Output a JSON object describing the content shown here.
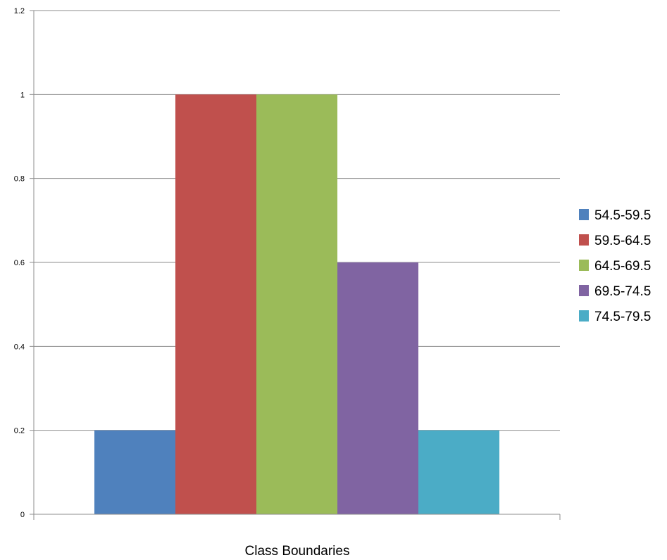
{
  "chart_data": {
    "type": "bar",
    "xlabel": "Class Boundaries",
    "ylabel": "",
    "ylim": [
      0,
      1.2
    ],
    "yticks": [
      "0",
      "0.2",
      "0.4",
      "0.6",
      "0.8",
      "1",
      "1.2"
    ],
    "grid": true,
    "legend_position": "right",
    "series": [
      {
        "name": "54.5-59.5",
        "value": 0.2,
        "color": "#4F81BD"
      },
      {
        "name": "59.5-64.5",
        "value": 1.0,
        "color": "#C0504D"
      },
      {
        "name": "64.5-69.5",
        "value": 1.0,
        "color": "#9BBB59"
      },
      {
        "name": "69.5-74.5",
        "value": 0.6,
        "color": "#8064A2"
      },
      {
        "name": "74.5-79.5",
        "value": 0.2,
        "color": "#4BACC6"
      }
    ]
  }
}
